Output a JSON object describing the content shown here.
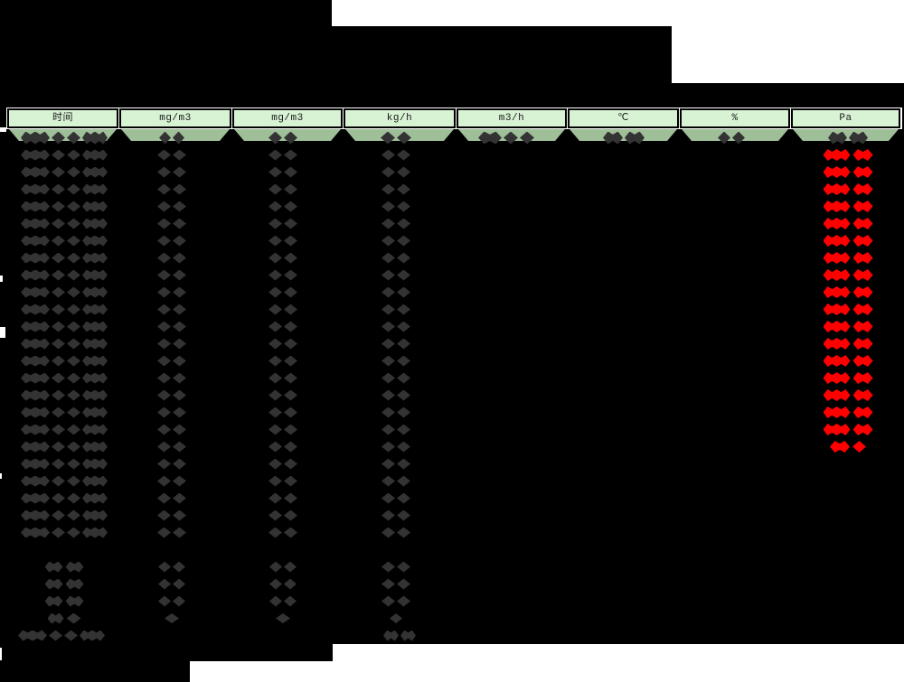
{
  "table": {
    "columns": [
      {
        "label": "时间"
      },
      {
        "label": "mg/m3"
      },
      {
        "label": "mg/m3"
      },
      {
        "label": "kg/h"
      },
      {
        "label": "m3/h"
      },
      {
        "label": "℃"
      },
      {
        "label": "%"
      },
      {
        "label": "Pa"
      }
    ],
    "rows": [
      "band",
      "data_pa",
      "data_pa",
      "data_pa",
      "data_pa",
      "data_pa",
      "data_pa",
      "data_pa",
      "data_pa",
      "data_pa",
      "data_pa",
      "data_pa",
      "data_pa",
      "data_pa",
      "data_pa",
      "data_pa",
      "data_pa",
      "data_pa",
      "data_pa_short",
      "data",
      "data",
      "data",
      "data",
      "data",
      "blank",
      "summary",
      "summary",
      "summary",
      "summary_small",
      "total"
    ]
  },
  "colors": {
    "background_black": "#000000",
    "sheet_white": "#ffffff",
    "header_fill": "#d8f3d4",
    "band_fill": "#9fbf99",
    "redaction_dark": "#333333",
    "redaction_red": "#ff0000",
    "header_text": "#1a1a1a"
  }
}
